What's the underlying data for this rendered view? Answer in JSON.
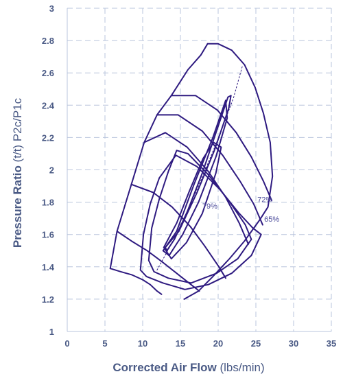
{
  "chart_data": {
    "type": "line",
    "subtype": "compressor-map",
    "title": "",
    "xlabel": {
      "bold": "Corrected Air Flow",
      "regular": " (lbs/min)"
    },
    "ylabel": {
      "bold": "Pressure Ratio",
      "regular": " (t/t) P2c/P1c"
    },
    "xlim": [
      0,
      35
    ],
    "ylim": [
      1,
      3
    ],
    "x_ticks": [
      0,
      5,
      10,
      15,
      20,
      25,
      30,
      35
    ],
    "y_ticks": [
      1,
      1.2,
      1.4,
      1.6,
      1.8,
      2,
      2.2,
      2.4,
      2.6,
      2.8,
      3
    ],
    "y_tick_labels": [
      "1",
      "1.2",
      "1.4",
      "1.6",
      "1.8",
      "2",
      "2.2",
      "2.4",
      "2.6",
      "2.8",
      "3"
    ],
    "grid": "dashed",
    "line_color": "#2e1a80",
    "grid_color": "#b8c4dc",
    "text_color": "#4a5a85",
    "surge_line": [
      [
        5.7,
        1.39
      ],
      [
        6.6,
        1.62
      ],
      [
        8.5,
        1.91
      ],
      [
        10.2,
        2.17
      ],
      [
        11.9,
        2.34
      ],
      [
        13.8,
        2.46
      ],
      [
        16.0,
        2.62
      ],
      [
        17.7,
        2.71
      ],
      [
        18.6,
        2.78
      ]
    ],
    "outer_boundary": [
      [
        18.6,
        2.78
      ],
      [
        20.0,
        2.78
      ],
      [
        21.8,
        2.74
      ],
      [
        23.5,
        2.65
      ],
      [
        24.9,
        2.51
      ],
      [
        26.0,
        2.35
      ],
      [
        26.9,
        2.17
      ],
      [
        27.2,
        1.96
      ],
      [
        26.6,
        1.77
      ],
      [
        25.5,
        1.69
      ],
      [
        23.5,
        1.56
      ],
      [
        21.5,
        1.45
      ],
      [
        19.3,
        1.34
      ],
      [
        17.4,
        1.25
      ],
      [
        15.5,
        1.2
      ]
    ],
    "speed_lines": [
      [
        [
          5.7,
          1.39
        ],
        [
          7.1,
          1.37
        ],
        [
          8.6,
          1.35
        ],
        [
          10.0,
          1.32
        ],
        [
          11.0,
          1.29
        ],
        [
          11.9,
          1.25
        ],
        [
          12.5,
          1.23
        ]
      ],
      [
        [
          6.6,
          1.62
        ],
        [
          8.5,
          1.56
        ],
        [
          10.6,
          1.5
        ],
        [
          12.6,
          1.43
        ],
        [
          14.5,
          1.36
        ],
        [
          16.4,
          1.29
        ],
        [
          17.5,
          1.25
        ]
      ],
      [
        [
          8.5,
          1.91
        ],
        [
          11.4,
          1.86
        ],
        [
          13.9,
          1.77
        ],
        [
          16.3,
          1.65
        ],
        [
          18.2,
          1.53
        ],
        [
          20.1,
          1.4
        ],
        [
          21.0,
          1.33
        ]
      ],
      [
        [
          10.2,
          2.17
        ],
        [
          13.0,
          2.23
        ],
        [
          15.9,
          2.14
        ],
        [
          18.7,
          1.99
        ],
        [
          21.0,
          1.83
        ],
        [
          22.8,
          1.67
        ],
        [
          24.0,
          1.54
        ]
      ],
      [
        [
          11.9,
          2.34
        ],
        [
          14.7,
          2.34
        ],
        [
          17.9,
          2.24
        ],
        [
          20.6,
          2.09
        ],
        [
          22.9,
          1.93
        ],
        [
          24.7,
          1.79
        ],
        [
          25.9,
          1.66
        ]
      ],
      [
        [
          13.8,
          2.46
        ],
        [
          17.0,
          2.46
        ],
        [
          19.9,
          2.37
        ],
        [
          22.4,
          2.23
        ],
        [
          24.4,
          2.08
        ],
        [
          26.0,
          1.93
        ],
        [
          27.1,
          1.81
        ]
      ]
    ],
    "efficiency_islands": [
      {
        "label": "",
        "points": [
          [
            13.0,
            1.52
          ],
          [
            14.8,
            1.62
          ],
          [
            17.2,
            1.86
          ],
          [
            19.5,
            2.12
          ],
          [
            21.4,
            2.38
          ],
          [
            21.7,
            2.46
          ],
          [
            21.3,
            2.45
          ],
          [
            20.0,
            2.27
          ],
          [
            17.9,
            1.98
          ],
          [
            15.9,
            1.74
          ],
          [
            14.2,
            1.57
          ],
          [
            13.2,
            1.5
          ],
          [
            13.0,
            1.52
          ]
        ]
      },
      {
        "label": "",
        "points": [
          [
            12.7,
            1.5
          ],
          [
            14.5,
            1.62
          ],
          [
            16.8,
            1.91
          ],
          [
            19.3,
            2.2
          ],
          [
            21.0,
            2.43
          ],
          [
            21.2,
            2.32
          ],
          [
            19.7,
            2.08
          ],
          [
            17.4,
            1.8
          ],
          [
            15.3,
            1.6
          ],
          [
            13.5,
            1.47
          ],
          [
            12.7,
            1.5
          ]
        ]
      },
      {
        "label": "79%",
        "points": [
          [
            12.8,
            1.52
          ],
          [
            14.5,
            1.67
          ],
          [
            16.2,
            1.87
          ],
          [
            18.0,
            2.07
          ],
          [
            19.4,
            2.17
          ],
          [
            20.4,
            2.14
          ],
          [
            19.7,
            1.98
          ],
          [
            17.9,
            1.73
          ],
          [
            15.8,
            1.55
          ],
          [
            13.8,
            1.45
          ],
          [
            12.8,
            1.52
          ]
        ]
      },
      {
        "label": "72%",
        "points": [
          [
            10.8,
            1.44
          ],
          [
            11.2,
            1.64
          ],
          [
            12.2,
            1.82
          ],
          [
            13.4,
            1.99
          ],
          [
            14.5,
            2.12
          ],
          [
            16.0,
            2.1
          ],
          [
            18.7,
            1.97
          ],
          [
            21.4,
            1.81
          ],
          [
            23.6,
            1.66
          ],
          [
            24.4,
            1.57
          ],
          [
            22.6,
            1.45
          ],
          [
            19.8,
            1.36
          ],
          [
            16.4,
            1.3
          ],
          [
            13.4,
            1.33
          ],
          [
            11.5,
            1.37
          ],
          [
            10.8,
            1.44
          ]
        ]
      },
      {
        "label": "65%",
        "points": [
          [
            9.7,
            1.38
          ],
          [
            10.1,
            1.6
          ],
          [
            11.0,
            1.79
          ],
          [
            12.2,
            1.95
          ],
          [
            14.4,
            2.09
          ],
          [
            17.2,
            2.02
          ],
          [
            20.2,
            1.88
          ],
          [
            22.8,
            1.73
          ],
          [
            24.6,
            1.64
          ],
          [
            25.7,
            1.6
          ],
          [
            24.4,
            1.47
          ],
          [
            21.8,
            1.36
          ],
          [
            18.7,
            1.29
          ],
          [
            15.6,
            1.26
          ],
          [
            12.7,
            1.3
          ],
          [
            10.5,
            1.34
          ],
          [
            9.7,
            1.38
          ]
        ]
      }
    ],
    "efficiency_labels": [
      "79%",
      "72%",
      "65%"
    ],
    "dotted_line": [
      [
        11.9,
        1.38
      ],
      [
        14.5,
        1.6
      ],
      [
        17.4,
        1.9
      ],
      [
        19.8,
        2.17
      ],
      [
        22.0,
        2.44
      ],
      [
        23.2,
        2.64
      ]
    ]
  }
}
